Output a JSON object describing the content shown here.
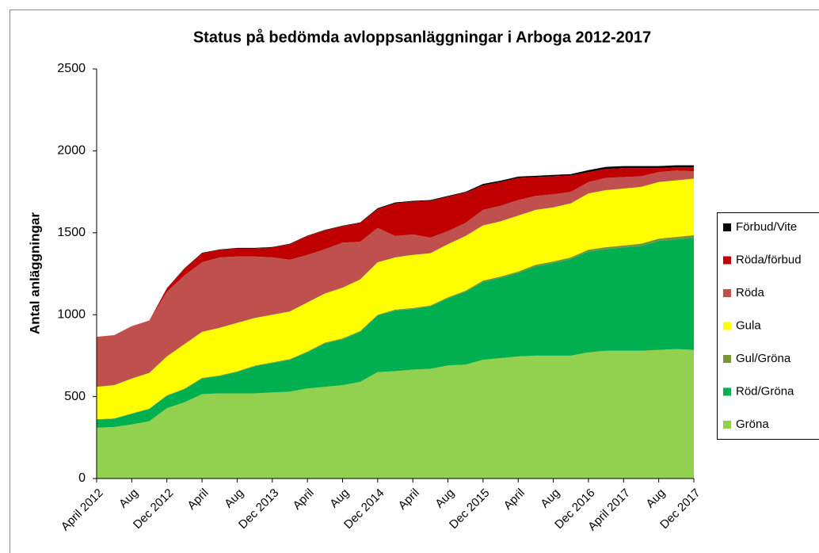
{
  "chart_data": {
    "type": "stacked_area",
    "title": "Status på bedömda avloppsanläggningar i Arboga 2012-2017",
    "y_label": "Antal anläggningar",
    "categories": [
      "April 2012",
      null,
      "Aug",
      null,
      "Dec 2012",
      null,
      "April",
      null,
      "Aug",
      null,
      "Dec 2013",
      null,
      "April",
      null,
      "Aug",
      null,
      "Dec 2014",
      null,
      "April",
      null,
      "Aug",
      null,
      "Dec 2015",
      null,
      "April",
      null,
      "Aug",
      null,
      "Dec 2016",
      null,
      "April 2017",
      null,
      "Aug",
      null,
      "Dec 2017"
    ],
    "ylim": [
      0,
      2500
    ],
    "yticks": [
      0,
      500,
      1000,
      1500,
      2000,
      2500
    ],
    "legend": "right",
    "series": [
      {
        "name": "Gröna",
        "color": "#92d050",
        "values": [
          310,
          315,
          330,
          350,
          430,
          465,
          515,
          520,
          520,
          520,
          525,
          530,
          550,
          560,
          570,
          590,
          650,
          655,
          665,
          670,
          690,
          695,
          725,
          735,
          745,
          750,
          750,
          750,
          770,
          780,
          780,
          780,
          785,
          790,
          785
        ]
      },
      {
        "name": "Röd/Gröna",
        "color": "#00b050",
        "values": [
          50,
          50,
          65,
          75,
          75,
          80,
          95,
          105,
          130,
          165,
          180,
          195,
          220,
          265,
          280,
          305,
          345,
          370,
          370,
          380,
          410,
          445,
          475,
          490,
          510,
          545,
          565,
          590,
          615,
          620,
          630,
          640,
          665,
          670,
          685
        ]
      },
      {
        "name": "Gul/Gröna",
        "color": "#77933c",
        "values": [
          2,
          2,
          2,
          2,
          3,
          3,
          4,
          4,
          4,
          4,
          4,
          4,
          5,
          5,
          5,
          5,
          5,
          6,
          6,
          6,
          6,
          6,
          8,
          8,
          8,
          10,
          10,
          10,
          12,
          12,
          12,
          14,
          14,
          15,
          15
        ]
      },
      {
        "name": "Gula",
        "color": "#ffff00",
        "values": [
          198,
          203,
          213,
          218,
          237,
          272,
          281,
          291,
          296,
          291,
          291,
          291,
          300,
          300,
          310,
          315,
          320,
          319,
          324,
          319,
          324,
          334,
          337,
          337,
          342,
          335,
          330,
          330,
          343,
          348,
          348,
          346,
          346,
          345,
          345
        ]
      },
      {
        "name": "Röda",
        "color": "#c0504d",
        "values": [
          305,
          305,
          320,
          320,
          395,
          420,
          425,
          430,
          405,
          375,
          350,
          315,
          290,
          270,
          275,
          230,
          210,
          130,
          125,
          95,
          80,
          80,
          95,
          95,
          95,
          85,
          80,
          70,
          70,
          75,
          70,
          65,
          60,
          60,
          45
        ]
      },
      {
        "name": "Röda/förbud",
        "color": "#c00000",
        "values": [
          0,
          0,
          0,
          0,
          20,
          40,
          55,
          45,
          50,
          50,
          60,
          95,
          115,
          115,
          100,
          115,
          115,
          200,
          200,
          225,
          210,
          185,
          150,
          145,
          135,
          115,
          110,
          100,
          60,
          55,
          55,
          50,
          25,
          20,
          25
        ]
      },
      {
        "name": "Förbud/Vite",
        "color": "#000000",
        "values": [
          0,
          0,
          0,
          0,
          2,
          3,
          3,
          3,
          3,
          3,
          3,
          3,
          3,
          3,
          3,
          3,
          5,
          5,
          5,
          5,
          5,
          5,
          8,
          8,
          8,
          8,
          8,
          8,
          12,
          12,
          12,
          12,
          12,
          12,
          12
        ]
      }
    ]
  }
}
